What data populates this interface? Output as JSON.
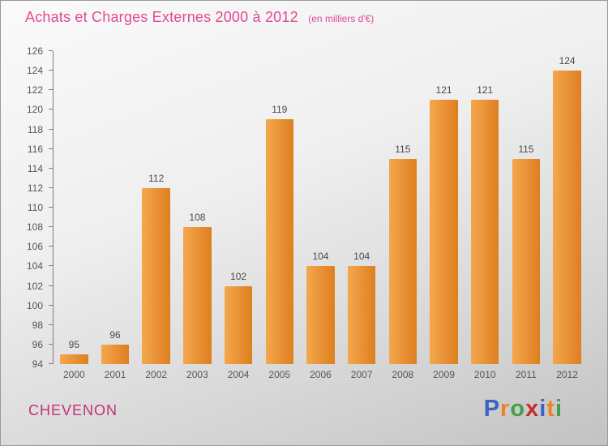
{
  "header": {
    "title": "Achats et Charges Externes 2000 à 2012",
    "subtitle": "(en milliers d'€)",
    "title_color": "#e04a93"
  },
  "chart_data": {
    "type": "bar",
    "title": "Achats et Charges Externes 2000 à 2012",
    "subtitle": "(en milliers d'€)",
    "categories": [
      "2000",
      "2001",
      "2002",
      "2003",
      "2004",
      "2005",
      "2006",
      "2007",
      "2008",
      "2009",
      "2010",
      "2011",
      "2012"
    ],
    "values": [
      95,
      96,
      112,
      108,
      102,
      119,
      104,
      104,
      115,
      121,
      121,
      115,
      124
    ],
    "ylim": [
      94,
      126
    ],
    "ytick_step": 2,
    "grid": false,
    "legend": "none",
    "bar_gradient": [
      "#f5a74e",
      "#dd7f1f"
    ],
    "value_label_color": "#4a4a4a",
    "axis_label_color": "#555555",
    "axis_line_color": "#7d7d7d"
  },
  "footer": {
    "company": "CHEVENON",
    "company_color": "#c2307c",
    "logo_letters": [
      {
        "char": "P",
        "color": "#3a63c4"
      },
      {
        "char": "r",
        "color": "#ef8222"
      },
      {
        "char": "o",
        "color": "#43a047"
      },
      {
        "char": "x",
        "color": "#c62f2f"
      },
      {
        "char": "i",
        "color": "#3a63c4"
      },
      {
        "char": "t",
        "color": "#ef8222"
      },
      {
        "char": "i",
        "color": "#43a047"
      }
    ]
  }
}
